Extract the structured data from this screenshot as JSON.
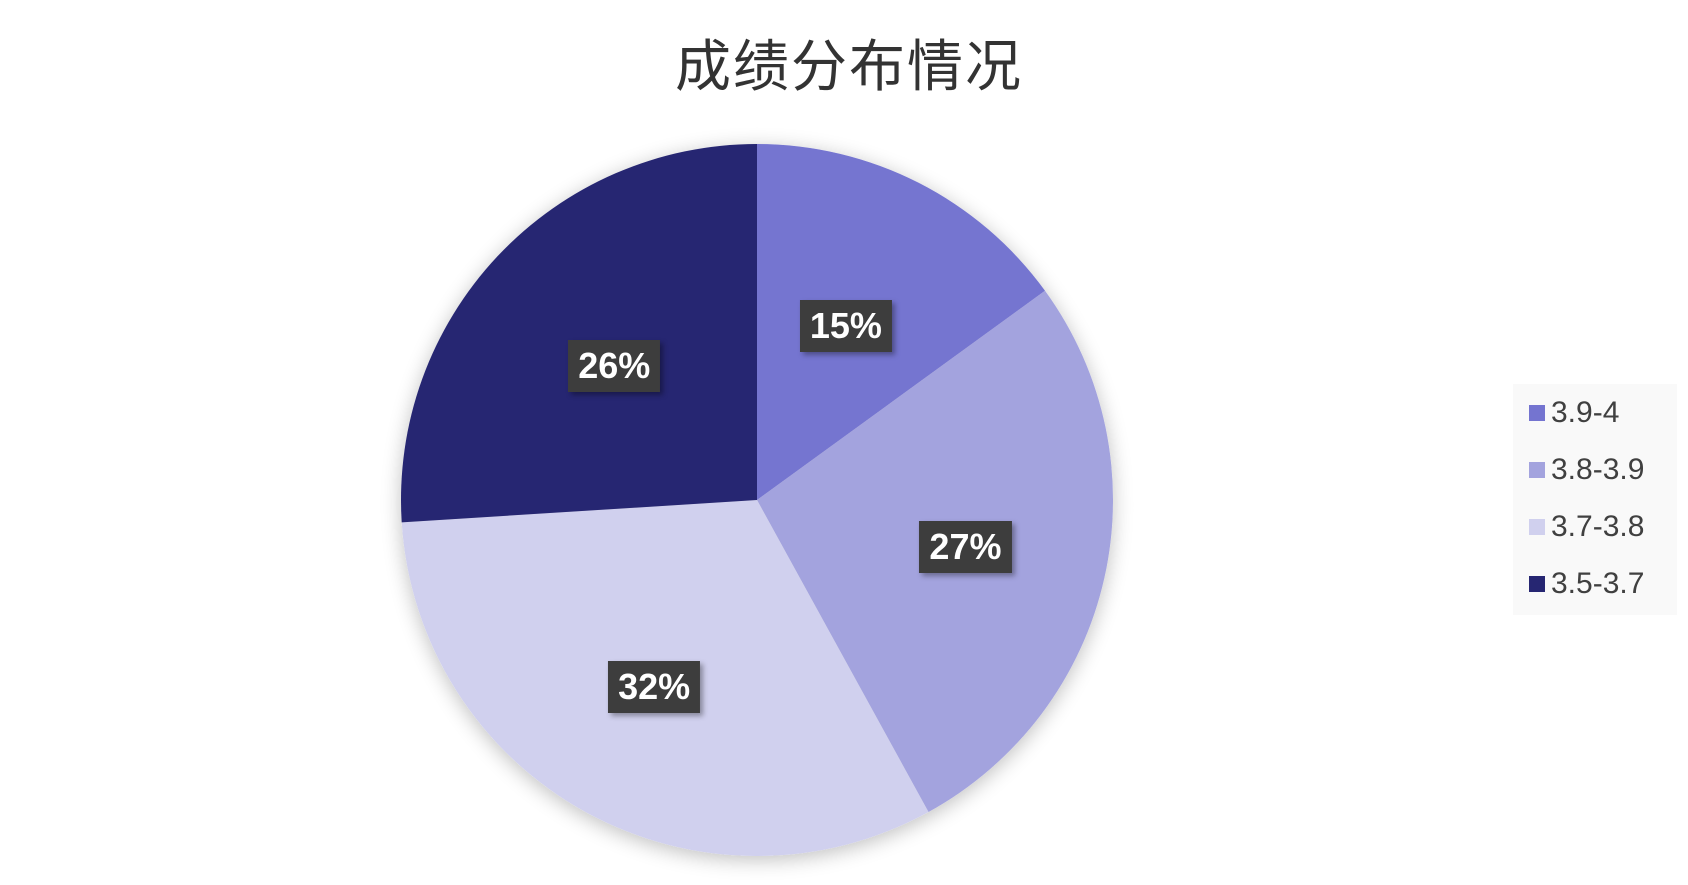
{
  "chart_data": {
    "type": "pie",
    "title": "成绩分布情况",
    "categories": [
      "3.9-4",
      "3.8-3.9",
      "3.7-3.8",
      "3.5-3.7"
    ],
    "values": [
      15,
      27,
      32,
      26
    ],
    "data_labels": [
      "15%",
      "27%",
      "32%",
      "26%"
    ],
    "colors": [
      "#7474d0",
      "#a3a3de",
      "#d0d0ee",
      "#262672"
    ],
    "start_angle": "12 o'clock",
    "direction": "clockwise",
    "legend_position": "right"
  }
}
